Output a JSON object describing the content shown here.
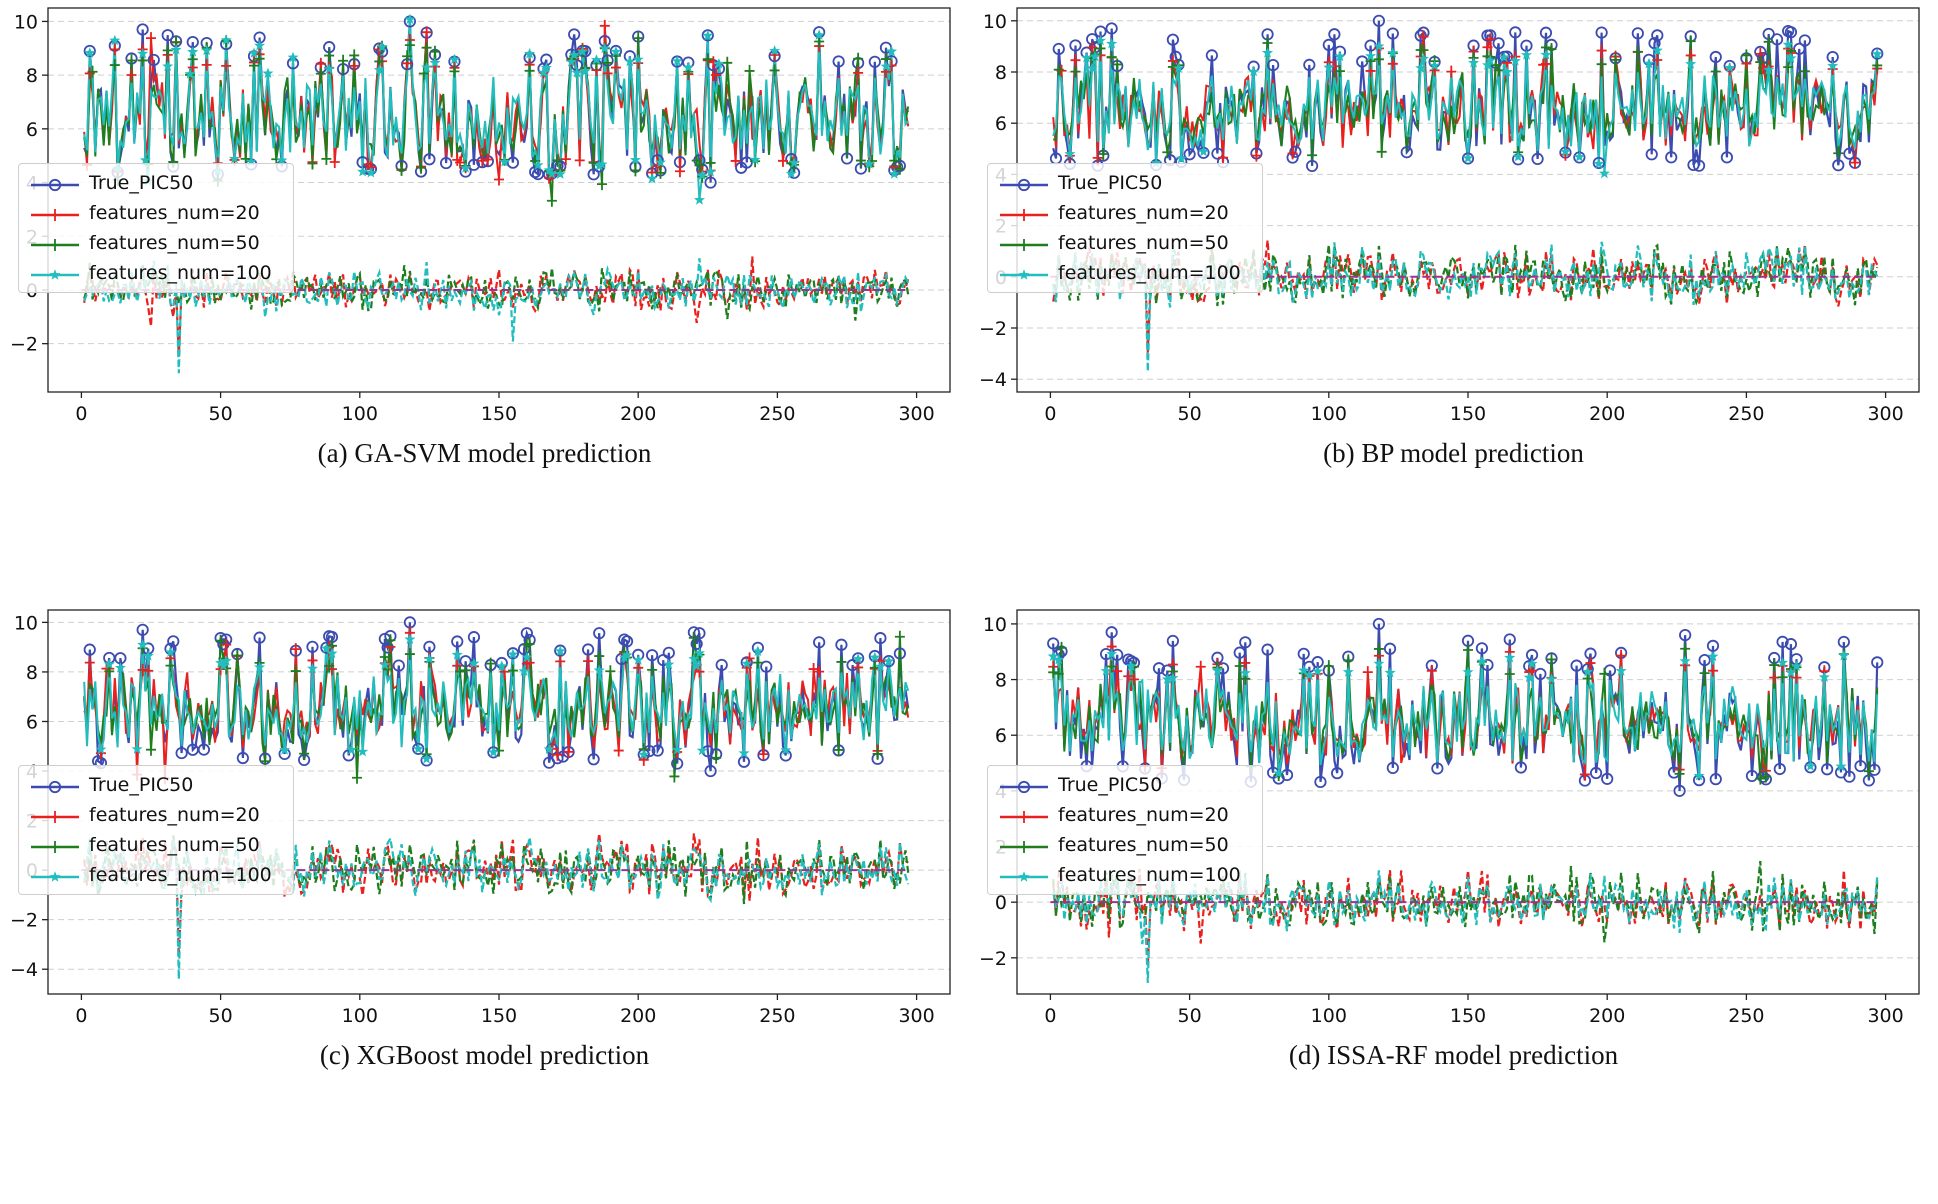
{
  "colors": {
    "true": "#3b4bb0",
    "f20": "#e8201e",
    "f50": "#1e7e1e",
    "f100": "#22bdbd",
    "zero_line": "#a0308f",
    "grid": "#cfcfcf"
  },
  "legend": [
    {
      "key": "true",
      "label": "True_PIC50",
      "marker": "circle"
    },
    {
      "key": "f20",
      "label": "features_num=20",
      "marker": "plus"
    },
    {
      "key": "f50",
      "label": "features_num=50",
      "marker": "plus"
    },
    {
      "key": "f100",
      "label": "features_num=100",
      "marker": "star"
    }
  ],
  "chart_data": [
    {
      "type": "line",
      "caption": "(a) GA-SVM model prediction",
      "xlim": [
        -12,
        312
      ],
      "ylim": [
        -3.8,
        10.5
      ],
      "xticks": [
        0,
        50,
        100,
        150,
        200,
        250,
        300
      ],
      "yticks": [
        -2,
        0,
        2,
        4,
        6,
        8,
        10
      ],
      "x_range": [
        1,
        297
      ],
      "grid": "horizontal dashed",
      "legend_position": "center-left",
      "series_names": [
        "True_PIC50",
        "features_num=20",
        "features_num=50",
        "features_num=100"
      ],
      "true_values_sample": {
        "x": [
          3,
          22,
          64,
          118,
          226,
          265
        ],
        "y": [
          8.9,
          9.7,
          9.4,
          10.0,
          4.0,
          9.6
        ]
      },
      "residual_extremes": {
        "min": -3.1,
        "max": 2.3
      },
      "true_range": [
        4.0,
        10.0
      ]
    },
    {
      "type": "line",
      "caption": "(b) BP model prediction",
      "xlim": [
        -12,
        312
      ],
      "ylim": [
        -4.5,
        10.5
      ],
      "xticks": [
        0,
        50,
        100,
        150,
        200,
        250,
        300
      ],
      "yticks": [
        -4,
        -2,
        0,
        2,
        4,
        6,
        8,
        10
      ],
      "x_range": [
        1,
        297
      ],
      "grid": "horizontal dashed",
      "legend_position": "center-left",
      "series_names": [
        "True_PIC50",
        "features_num=20",
        "features_num=50",
        "features_num=100"
      ],
      "true_values_sample": {
        "x": [
          3,
          22,
          118,
          265
        ],
        "y": [
          8.9,
          9.7,
          10.0,
          9.6
        ]
      },
      "residual_extremes": {
        "min": -3.7,
        "max": 2.8
      },
      "true_range": [
        4.0,
        10.0
      ]
    },
    {
      "type": "line",
      "caption": "(c) XGBoost model prediction",
      "xlim": [
        -12,
        312
      ],
      "ylim": [
        -5.0,
        10.5
      ],
      "xticks": [
        0,
        50,
        100,
        150,
        200,
        250,
        300
      ],
      "yticks": [
        -4,
        -2,
        0,
        2,
        4,
        6,
        8,
        10
      ],
      "x_range": [
        1,
        297
      ],
      "grid": "horizontal dashed",
      "legend_position": "center-left",
      "series_names": [
        "True_PIC50",
        "features_num=20",
        "features_num=50",
        "features_num=100"
      ],
      "true_values_sample": {
        "x": [
          3,
          22,
          118,
          226
        ],
        "y": [
          8.9,
          9.7,
          10.0,
          4.0
        ]
      },
      "residual_extremes": {
        "min": -4.4,
        "max": 2.0
      },
      "true_range": [
        4.0,
        10.0
      ]
    },
    {
      "type": "line",
      "caption": "(d) ISSA-RF model prediction",
      "xlim": [
        -12,
        312
      ],
      "ylim": [
        -3.3,
        10.5
      ],
      "xticks": [
        0,
        50,
        100,
        150,
        200,
        250,
        300
      ],
      "yticks": [
        -2,
        0,
        2,
        4,
        6,
        8,
        10
      ],
      "x_range": [
        1,
        297
      ],
      "grid": "horizontal dashed",
      "legend_position": "center-left",
      "series_names": [
        "True_PIC50",
        "features_num=20",
        "features_num=50",
        "features_num=100"
      ],
      "true_values_sample": {
        "x": [
          3,
          22,
          118,
          226
        ],
        "y": [
          8.9,
          9.7,
          10.0,
          4.0
        ]
      },
      "residual_extremes": {
        "min": -2.9,
        "max": 2.3
      },
      "true_range": [
        4.0,
        10.0
      ]
    }
  ]
}
